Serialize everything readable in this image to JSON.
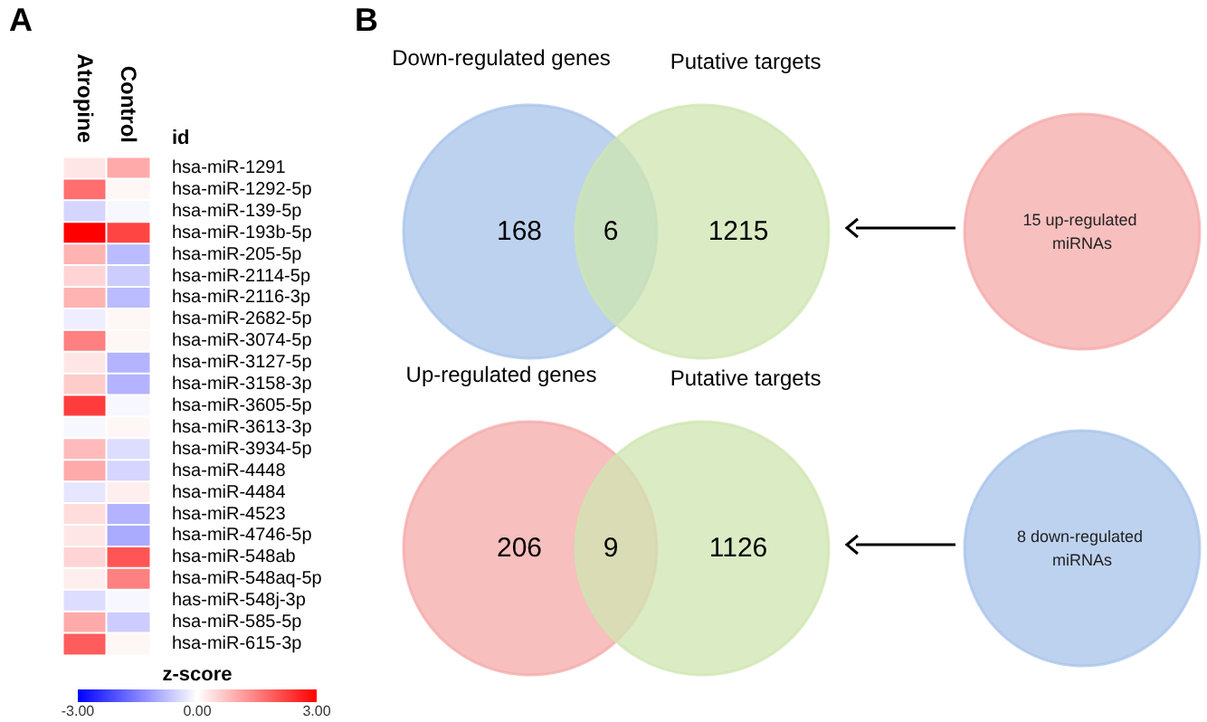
{
  "chart_data": [
    {
      "type": "heatmap",
      "title": "A",
      "categories": [
        "Atropine",
        "Control"
      ],
      "y_categories": [
        "hsa-miR-1291",
        "hsa-miR-1292-5p",
        "hsa-miR-139-5p",
        "hsa-miR-193b-5p",
        "hsa-miR-205-5p",
        "hsa-miR-2114-5p",
        "hsa-miR-2116-3p",
        "hsa-miR-2682-5p",
        "hsa-miR-3074-5p",
        "hsa-miR-3127-5p",
        "hsa-miR-3158-3p",
        "hsa-miR-3605-5p",
        "hsa-miR-3613-3p",
        "hsa-miR-3934-5p",
        "hsa-miR-4448",
        "hsa-miR-4484",
        "hsa-miR-4523",
        "hsa-miR-4746-5p",
        "hsa-miR-548ab",
        "hsa-miR-548aq-5p",
        "has-miR-548j-3p",
        "hsa-miR-585-5p",
        "hsa-miR-615-3p"
      ],
      "cells": [
        [
          0.3,
          1.0
        ],
        [
          1.7,
          0.1
        ],
        [
          -0.5,
          -0.1
        ],
        [
          3.0,
          2.2
        ],
        [
          0.9,
          -0.8
        ],
        [
          0.5,
          -0.6
        ],
        [
          0.9,
          -0.8
        ],
        [
          -0.2,
          0.1
        ],
        [
          1.5,
          0.1
        ],
        [
          0.3,
          -0.9
        ],
        [
          0.6,
          -0.9
        ],
        [
          2.3,
          -0.1
        ],
        [
          -0.1,
          0.1
        ],
        [
          0.8,
          -0.4
        ],
        [
          1.0,
          -0.5
        ],
        [
          -0.3,
          0.2
        ],
        [
          0.4,
          -0.9
        ],
        [
          0.3,
          -1.0
        ],
        [
          0.5,
          2.0
        ],
        [
          0.2,
          1.5
        ],
        [
          -0.4,
          -0.1
        ],
        [
          1.0,
          -0.6
        ],
        [
          1.9,
          0.1
        ]
      ],
      "clabel": "z-score",
      "clim": [
        -3,
        3
      ],
      "cticks": [
        {
          "value": -3,
          "label": "-3.00"
        },
        {
          "value": 0,
          "label": "0.00"
        },
        {
          "value": 3,
          "label": "3.00"
        }
      ],
      "annotations": [
        "id"
      ]
    },
    {
      "type": "other",
      "title": "B",
      "categories": [
        "Down-regulated genes",
        null,
        "Putative targets"
      ],
      "values": [
        168,
        6,
        1215
      ],
      "data_labels": true,
      "colors": [
        "#a7c3ea",
        null,
        "#cfe6b0"
      ],
      "annotations": [
        "15 up-regulated miRNAs"
      ]
    },
    {
      "type": "other",
      "categories": [
        "Up-regulated genes",
        null,
        "Putative targets"
      ],
      "values": [
        206,
        9,
        1126
      ],
      "data_labels": true,
      "colors": [
        "#f4a9a8",
        null,
        "#cfe6b0"
      ],
      "annotations": [
        "8 down-regulated miRNAs"
      ]
    }
  ]
}
